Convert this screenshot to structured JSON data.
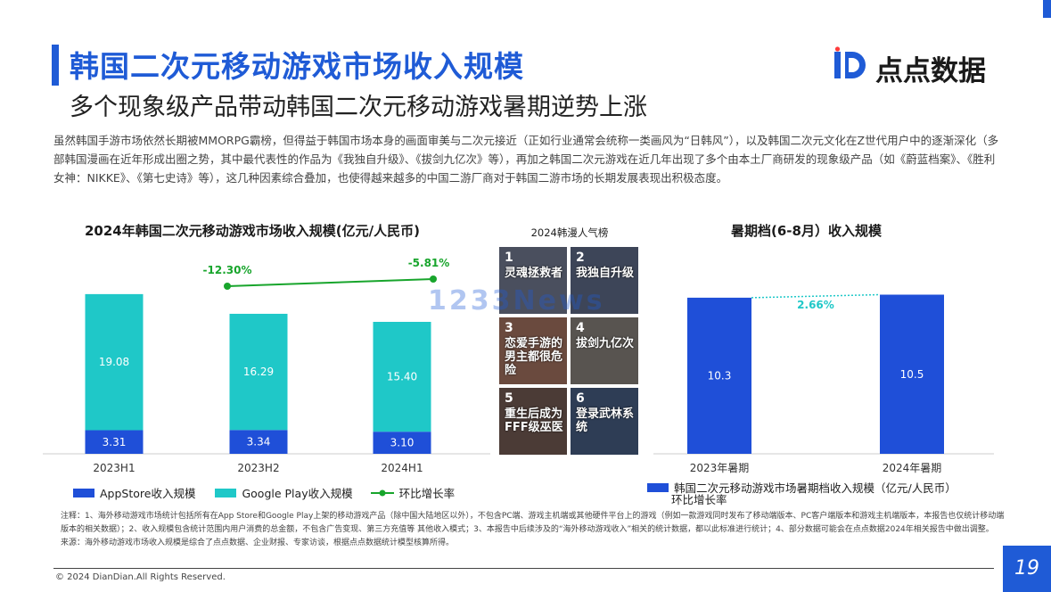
{
  "header": {
    "title": "韩国二次元移动游戏市场收入规模",
    "subtitle": "多个现象级产品带动韩国二次元移动游戏暑期逆势上涨",
    "logo_text": "点点数据"
  },
  "intro": "虽然韩国手游市场依然长期被MMORPG霸榜，但得益于韩国市场本身的画面审美与二次元接近（正如行业通常会统称一类画风为“日韩风”），以及韩国二次元文化在Z世代用户中的逐渐深化（多部韩国漫画在近年形成出圈之势，其中最代表性的作品为《我独自升级》、《拔剑九亿次》等），再加之韩国二次元游戏在近几年出现了多个由本土厂商研发的现象级产品（如《蔚蓝档案》、《胜利女神：NIKKE》、《第七史诗》等），这几种因素综合叠加，也使得越来越多的中国二游厂商对于韩国二游市场的长期发展表现出积极态度。",
  "rank": {
    "title": "2024韩漫人气榜",
    "items": [
      {
        "num": "1",
        "name": "灵魂拯救者"
      },
      {
        "num": "2",
        "name": "我独自升级"
      },
      {
        "num": "3",
        "name": "恋爱手游的男主都很危险"
      },
      {
        "num": "4",
        "name": "拔剑九亿次"
      },
      {
        "num": "5",
        "name": "重生后成为FFF级巫医"
      },
      {
        "num": "6",
        "name": "登录武林系统"
      }
    ]
  },
  "watermark": "1233News",
  "chart_data": [
    {
      "type": "bar",
      "title": "2024年韩国二次元移动游戏市场收入规模(亿元/人民币)",
      "categories": [
        "2023H1",
        "2023H2",
        "2024H1"
      ],
      "series": [
        {
          "name": "AppStore收入规模",
          "values": [
            3.31,
            3.34,
            3.1
          ],
          "color": "#1f4fd8"
        },
        {
          "name": "Google Play收入规模",
          "values": [
            19.08,
            16.29,
            15.4
          ],
          "color": "#1fc8c8"
        }
      ],
      "line_series": {
        "name": "环比增长率",
        "labels": [
          "-12.30%",
          "-5.81%"
        ],
        "values": [
          -12.3,
          -5.81
        ],
        "color": "#18a52c"
      }
    },
    {
      "type": "bar",
      "title": "暑期档(6-8月）收入规模",
      "categories": [
        "2023年暑期",
        "2024年暑期"
      ],
      "series": [
        {
          "name": "韩国二次元移动游戏市场暑期档收入规模（亿元/人民币）",
          "values": [
            10.3,
            10.5
          ],
          "color": "#1f4fd8"
        }
      ],
      "line_series": {
        "name": "环比增长率",
        "labels": [
          "2.66%"
        ],
        "values": [
          2.66
        ],
        "color": "#1fc8c8"
      }
    }
  ],
  "notes": {
    "line1": "注释：1、海外移动游戏市场统计包括所有在App Store和Google Play上架的移动游戏产品（除中国大陆地区以外），不包含PC端、游戏主机端或其他硬件平台上的游戏（例如一款游戏同时发布了移动端版本、PC客户端版本和游戏主机端版本，本报告也仅统计移动端版本的相关数据）；2、收入规模包含统计范围内用户消费的总金额，不包含广告变现、第三方充值等 其他收入模式；3、本报告中后续涉及的“海外移动游戏收入”相关的统计数据，都以此标准进行统计；4、部分数据可能会在点点数据2024年相关报告中做出调整。",
    "line2": "来源：海外移动游戏市场收入规模是综合了点点数据、企业财报、专家访谈，根据点点数据统计模型核算所得。"
  },
  "footer": {
    "copyright": "© 2024 DianDian.All Rights Reserved.",
    "page": "19"
  }
}
